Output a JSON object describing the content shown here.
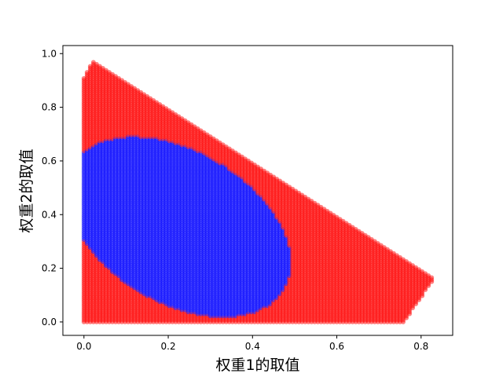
{
  "chart_data": {
    "type": "scatter",
    "xlabel": "权重1的取值",
    "ylabel": "权重2的取值",
    "xlim": [
      -0.05,
      0.875
    ],
    "ylim": [
      -0.05,
      1.03
    ],
    "xticks": [
      "0.0",
      "0.2",
      "0.4",
      "0.6",
      "0.8"
    ],
    "yticks": [
      "0.0",
      "0.2",
      "0.4",
      "0.6",
      "0.8",
      "1.0"
    ],
    "xtick_values": [
      0.0,
      0.2,
      0.4,
      0.6,
      0.8
    ],
    "ytick_values": [
      0.0,
      0.2,
      0.4,
      0.6,
      0.8,
      1.0
    ],
    "grid": false,
    "series": [
      {
        "color": "#ff0000",
        "description_region": "feasible triangle w1>=0, w2>=0, w1+w2<=~0.97, excluding blue ellipse",
        "outline": [
          [
            0.0,
            0.0
          ],
          [
            0.0,
            0.91
          ],
          [
            0.02,
            0.97
          ],
          [
            0.83,
            0.16
          ],
          [
            0.76,
            0.0
          ]
        ]
      },
      {
        "color": "#0000ff",
        "ellipse": {
          "cx": 0.225,
          "cy": 0.355,
          "rx": 0.225,
          "ry": 0.365,
          "rotation_deg": 30
        }
      }
    ],
    "point_step": 0.0075
  }
}
